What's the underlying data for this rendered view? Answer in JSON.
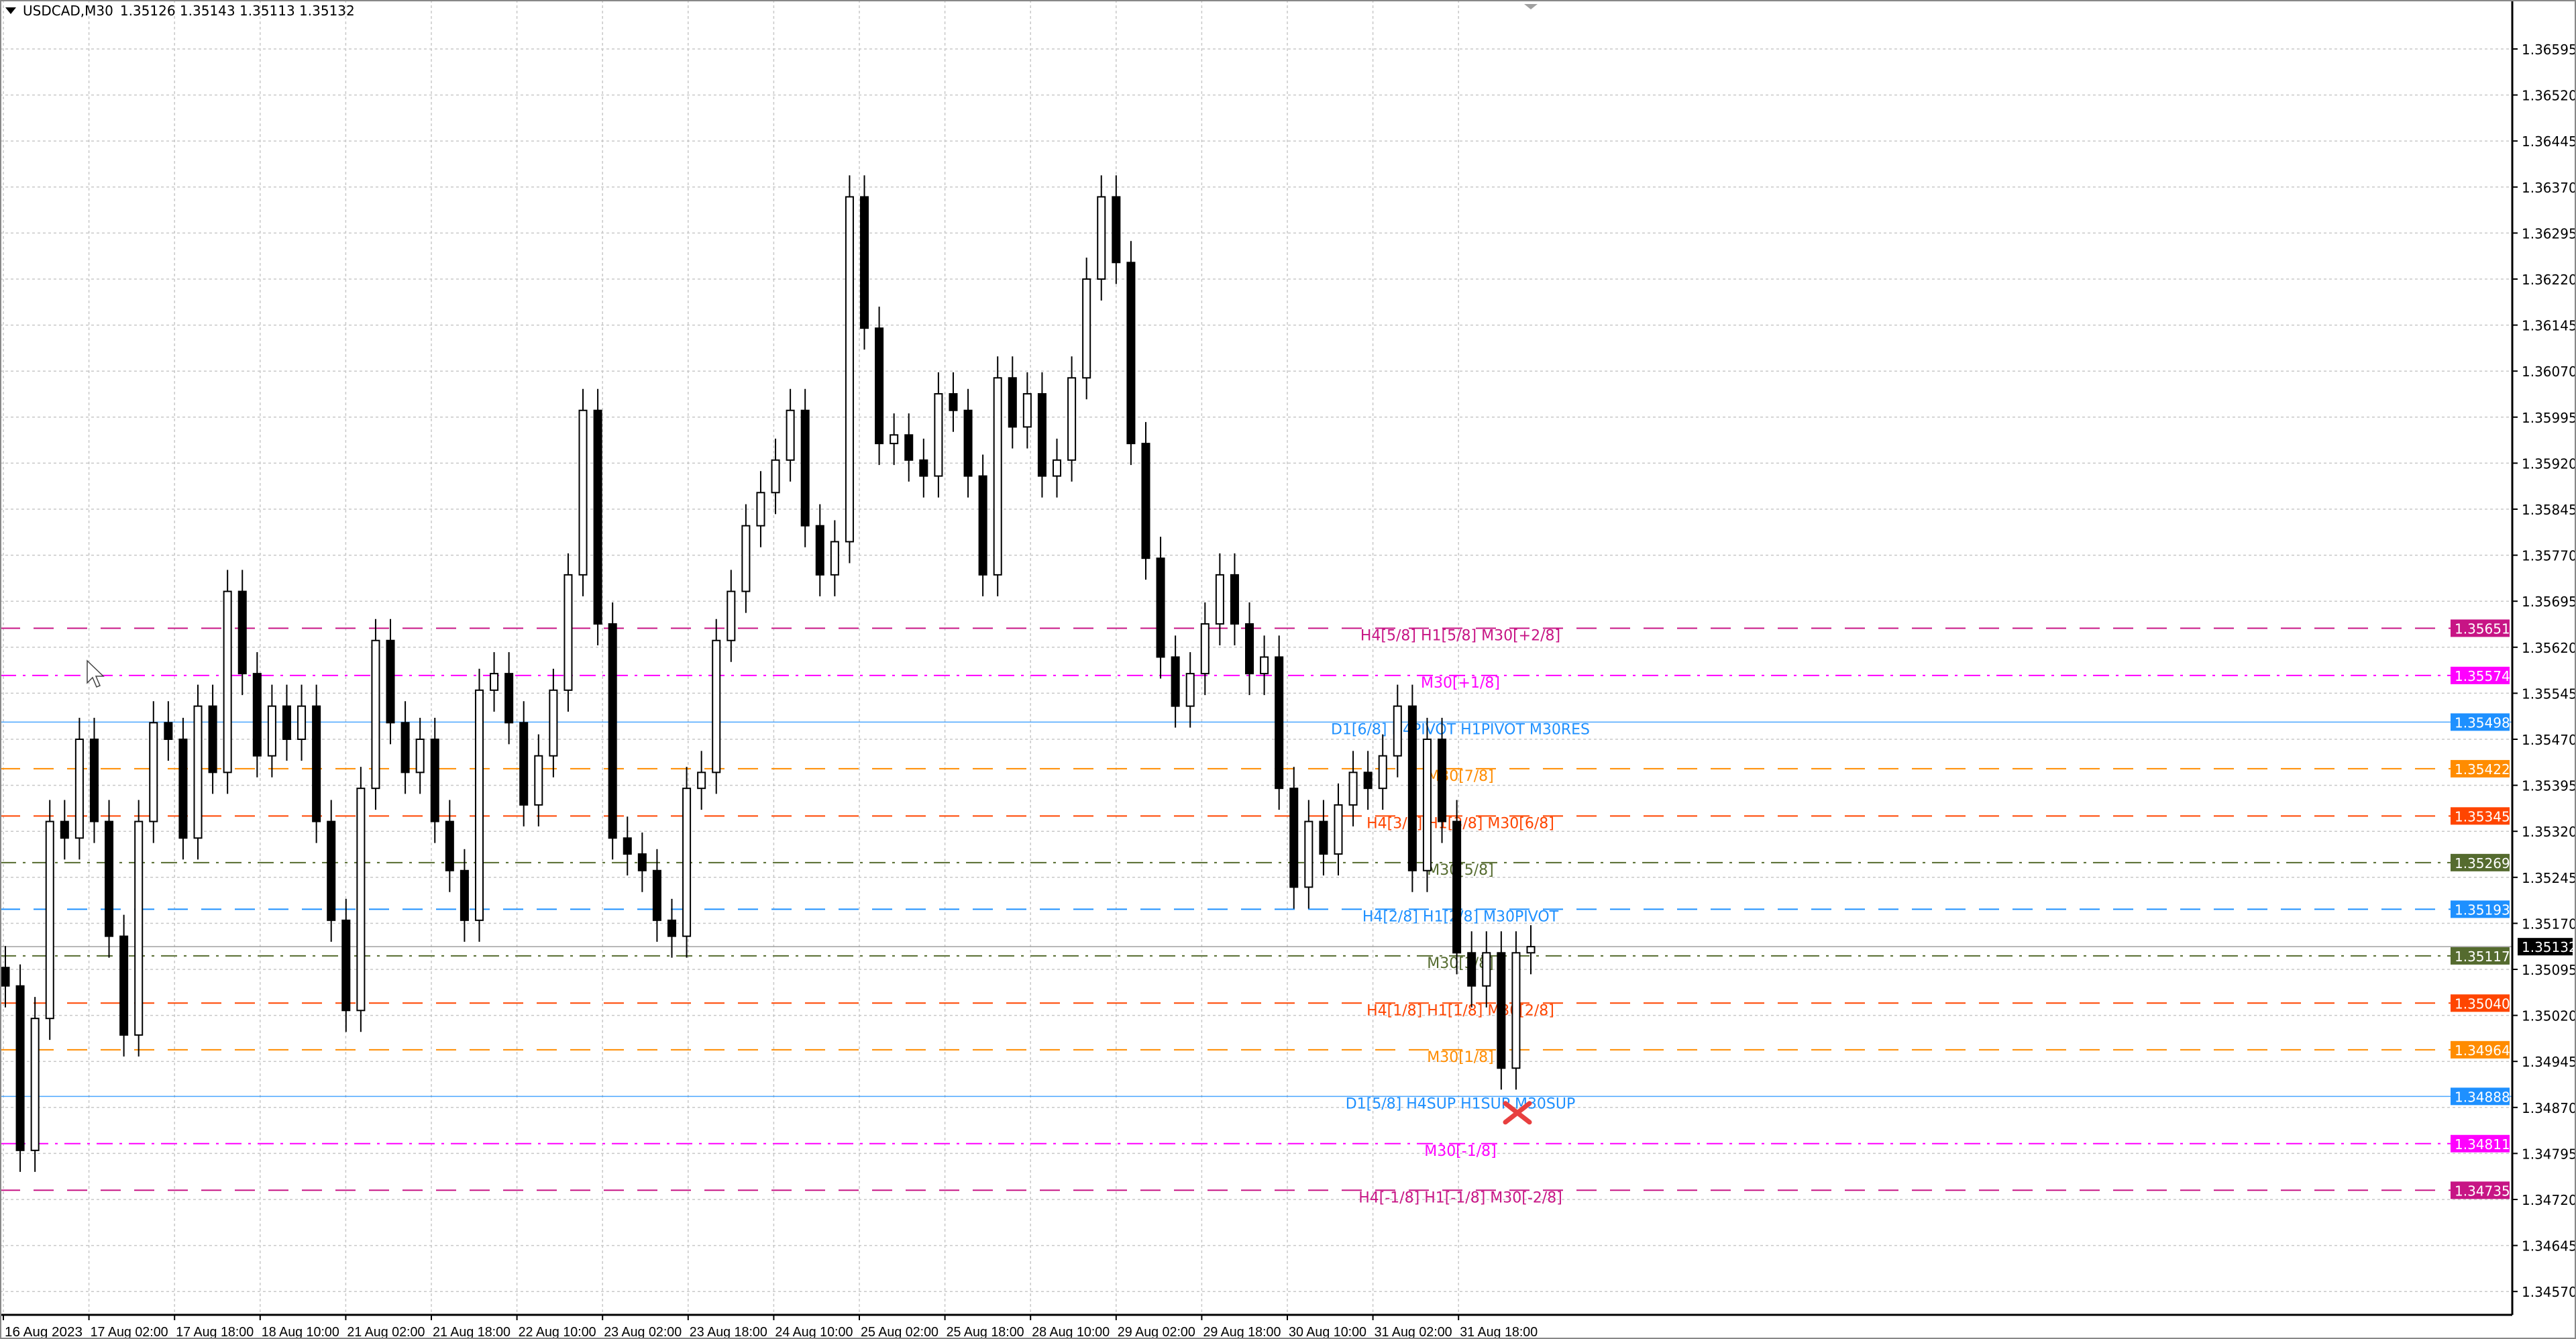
{
  "header": {
    "symbol": "USDCAD,M30",
    "ohlc": "1.35126 1.35143 1.35113 1.35132"
  },
  "chart_data": {
    "type": "candlestick",
    "ylim": [
      1.3454,
      1.3664
    ],
    "grid": true,
    "y_ticks": [
      "1.36595",
      "1.36520",
      "1.36445",
      "1.36370",
      "1.36295",
      "1.36220",
      "1.36145",
      "1.36070",
      "1.35995",
      "1.35920",
      "1.35845",
      "1.35770",
      "1.35695",
      "1.35620",
      "1.35545",
      "1.35470",
      "1.35395",
      "1.35320",
      "1.35245",
      "1.35170",
      "1.35095",
      "1.35020",
      "1.34945",
      "1.34870",
      "1.34795",
      "1.34720",
      "1.34645",
      "1.34570"
    ],
    "x_ticks": [
      "16 Aug 2023",
      "17 Aug 02:00",
      "17 Aug 18:00",
      "18 Aug 10:00",
      "21 Aug 02:00",
      "21 Aug 18:00",
      "22 Aug 10:00",
      "23 Aug 02:00",
      "23 Aug 18:00",
      "24 Aug 10:00",
      "25 Aug 02:00",
      "25 Aug 18:00",
      "28 Aug 10:00",
      "29 Aug 02:00",
      "29 Aug 18:00",
      "30 Aug 10:00",
      "31 Aug 02:00",
      "31 Aug 18:00"
    ],
    "closes": [
      1.35068,
      1.348,
      1.35015,
      1.35336,
      1.35309,
      1.3547,
      1.35336,
      1.35149,
      1.34988,
      1.35336,
      1.35497,
      1.3547,
      1.35309,
      1.35524,
      1.35416,
      1.35711,
      1.35577,
      1.35443,
      1.35524,
      1.3547,
      1.35524,
      1.35336,
      1.35175,
      1.35028,
      1.3539,
      1.35631,
      1.35497,
      1.35416,
      1.3547,
      1.35336,
      1.35256,
      1.35175,
      1.3555,
      1.35577,
      1.35497,
      1.35363,
      1.35443,
      1.3555,
      1.35738,
      1.36006,
      1.35658,
      1.35309,
      1.35283,
      1.35256,
      1.35175,
      1.35149,
      1.3539,
      1.35416,
      1.35631,
      1.35711,
      1.35818,
      1.35872,
      1.35925,
      1.36006,
      1.35818,
      1.35738,
      1.35792,
      1.36354,
      1.3614,
      1.35952,
      1.35966,
      1.35925,
      1.35899,
      1.36033,
      1.36006,
      1.35899,
      1.35738,
      1.36059,
      1.35979,
      1.36033,
      1.35899,
      1.35925,
      1.36059,
      1.3622,
      1.36354,
      1.36247,
      1.35952,
      1.35765,
      1.35604,
      1.35524,
      1.35577,
      1.35658,
      1.35738,
      1.35658,
      1.35577,
      1.35604,
      1.3539,
      1.35229,
      1.35336,
      1.35283,
      1.35363,
      1.35416,
      1.3539,
      1.35443,
      1.35524,
      1.35256,
      1.3547,
      1.35336,
      1.35122,
      1.35068,
      1.35122,
      1.34934,
      1.35122,
      1.35132
    ],
    "current_price": {
      "value": "1.35132",
      "color": "#000000"
    },
    "levels": [
      {
        "price": 1.35651,
        "label": "H4[5/8] H1[5/8] M30[+2/8]",
        "tag": "1.35651",
        "color": "#C71585",
        "style": "dash"
      },
      {
        "price": 1.35574,
        "label": "M30[+1/8]",
        "tag": "1.35574",
        "color": "#FF00FF",
        "style": "dashdot"
      },
      {
        "price": 1.35498,
        "label": "D1[6/8] H4PIVOT H1PIVOT M30RES",
        "tag": "1.35498",
        "color": "#1E90FF",
        "style": "solid"
      },
      {
        "price": 1.35422,
        "label": "M30[7/8]",
        "tag": "1.35422",
        "color": "#FF8C00",
        "style": "dash"
      },
      {
        "price": 1.35345,
        "label": "H4[3/8] H1[3/8] M30[6/8]",
        "tag": "1.35345",
        "color": "#FF4500",
        "style": "dash"
      },
      {
        "price": 1.35269,
        "label": "M30[5/8]",
        "tag": "1.35269",
        "color": "#556B2F",
        "style": "dashdot"
      },
      {
        "price": 1.35193,
        "label": "H4[2/8] H1[2/8] M30PIVOT",
        "tag": "1.35193",
        "color": "#1E90FF",
        "style": "dash"
      },
      {
        "price": 1.35117,
        "label": "M30[3/8]",
        "tag": "1.35117",
        "color": "#556B2F",
        "style": "dashdot"
      },
      {
        "price": 1.3504,
        "label": "H4[1/8] H1[1/8] M30[2/8]",
        "tag": "1.35040",
        "color": "#FF4500",
        "style": "dash"
      },
      {
        "price": 1.34964,
        "label": "M30[1/8]",
        "tag": "1.34964",
        "color": "#FF8C00",
        "style": "dash"
      },
      {
        "price": 1.34888,
        "label": "D1[5/8] H4SUP H1SUP M30SUP",
        "tag": "1.34888",
        "color": "#1E90FF",
        "style": "solid"
      },
      {
        "price": 1.34811,
        "label": "M30[-1/8]",
        "tag": "1.34811",
        "color": "#FF00FF",
        "style": "dashdot"
      },
      {
        "price": 1.34735,
        "label": "H4[-1/8] H1[-1/8] M30[-2/8]",
        "tag": "1.34735",
        "color": "#C71585",
        "style": "dash"
      }
    ],
    "marker": {
      "type": "cross",
      "price": 1.3487,
      "color": "#E84040"
    }
  }
}
